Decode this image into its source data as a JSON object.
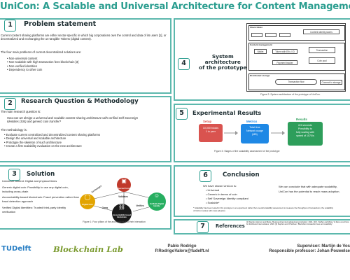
{
  "title": "UniCon: A Scalable and Universal Architecture for Content Management",
  "panel1": {
    "number": "1",
    "title": "Problem statement",
    "intro": "Current content sharing platforms are either sector-specific in which big corporations own the control and data of its users [1], or decentralized and exchanging the un-tangible Tokens (digital content).",
    "subhead": "The four main problems of current decentralized solutions are:",
    "items": [
      "Non-universal content",
      "Non-scalable with high transaction fees blockchain [3]",
      "Non-verified identities",
      "Dependency to other coin"
    ]
  },
  "panel2": {
    "number": "2",
    "title": "Research Question & Methodology",
    "rq_label": "The main research question is:",
    "rq": "How can we design a universal and scalable content sharing architecture with verified Self Sovereign Identities (SSI) and generic coin transfer?",
    "method_label": "The methodology is:",
    "steps": [
      "Evaluate current centralized and decentralized content sharing platforms",
      "Design the universal and scalable architecture",
      "Prototype the skeleton of such architecture",
      "Create a first scalability evaluation on the new architecture"
    ]
  },
  "panel3": {
    "number": "3",
    "title": "Solution",
    "points": [
      "Universal content: Digital and physical items",
      "Generic digital coin: Possibility to use any digital coin, including cross-chain",
      "Accountability-based blockchain: Fraud prevention rather than fraud detection approach",
      "Verified Digital Identities: Trusted third-party identity verification"
    ],
    "circles": [
      {
        "label": "Universal Content",
        "icon": "cube-icon",
        "color": "#c0392b"
      },
      {
        "label": "Digital Coin",
        "icon": "coin-icon",
        "color": "#e2a400"
      },
      {
        "label": "Accountability based blockchain",
        "icon": "chain-icon",
        "color": "#1a1a1a"
      },
      {
        "label": "Verifiable Digital Identity",
        "icon": "id-icon",
        "color": "#27ae60"
      }
    ],
    "arrows": [
      "Exchanges",
      "Validates",
      "Owns",
      "Verifies"
    ],
    "caption": "Figure 1: Four pillars of the architecture and their interaction"
  },
  "panel4": {
    "number": "4",
    "title_lines": [
      "System",
      "architecture",
      "of the prototype"
    ],
    "caption": "Figure 2: System architecture of the prototype of UniCon.",
    "sections": [
      "Client folder",
      "Content management",
      "Distributed storage"
    ],
    "boxes": [
      "Content identity stores",
      "Transaction",
      "Coin pool",
      "Wallet",
      "Token with EKs / ID",
      "Payment tracker",
      "Transaction flow",
      "Connect to storage"
    ]
  },
  "panel5": {
    "number": "5",
    "title": "Experimental Results",
    "columns": [
      {
        "head": "Setup",
        "lines": [
          "10,000 blocks",
          "1 to peer"
        ],
        "color": "#d9534f"
      },
      {
        "head": "Metrics",
        "lines": [
          "Total time",
          "Network usage",
          "(MB)"
        ],
        "color": "#1e88e5"
      },
      {
        "head": "Results",
        "lines": [
          "8.5 seconds",
          "Possibility to",
          "fully scaling with",
          "speed of 1070/s"
        ],
        "color": "#2e9e5b"
      }
    ],
    "caption": "Figure 3: Stages of the scalability assessment of the prototype"
  },
  "panel6": {
    "number": "6",
    "title": "Conclusion",
    "left_intro": "We have shown UniCon is:",
    "left_items": [
      "Universal",
      "Generic in terms of coin",
      "Self Sovereign Identity compliant",
      "Scalable*"
    ],
    "right": "We can conclude that with adequate scalability, UniCon has the potential to reach mass adoption.",
    "footnote": "* Scalability has been tested in this prototype in an experiment rather than overall scalability assessment to measure the throughput of transactions; the scalability of UniCon scales with mass adoption."
  },
  "panel7": {
    "number": "7",
    "title": "References",
    "refs": "[1] Stephen Harmon and Maria, 'Representing intermediated anonymization', 2021. [2] K. Steffen and Maria, 'Is there a tool here for distributed intermediates', 2020. [3] Stephen and O'Sullivan, 'Blockchain transaction fees and scalability'."
  },
  "footer": {
    "logo_tu": "TUDelft",
    "logo_lab": "Blockchain Lab",
    "author": "Pablo Rodrigo",
    "email": "P.RodrigoValero@tudelft.nl",
    "supervisor": "Supervisor: Martijn de Vos",
    "professor": "Responsible professor: Johan Pouwelse"
  }
}
